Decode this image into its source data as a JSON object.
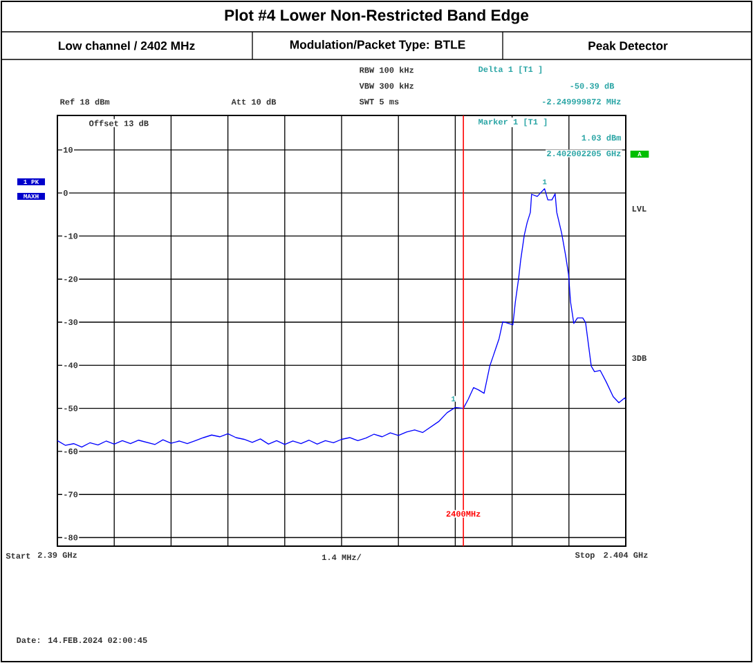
{
  "chart_data": {
    "type": "line",
    "title": "Plot #4 Lower Non-Restricted Band Edge",
    "xlabel": "1.4 MHz/",
    "x": [
      2.39,
      2.3902,
      2.3904,
      2.3906,
      2.3908,
      2.391,
      2.3912,
      2.3914,
      2.3916,
      2.3918,
      2.392,
      2.3922,
      2.3924,
      2.3926,
      2.3928,
      2.393,
      2.3932,
      2.3934,
      2.3936,
      2.3938,
      2.394,
      2.3942,
      2.3944,
      2.3946,
      2.3948,
      2.395,
      2.3952,
      2.3954,
      2.3956,
      2.3958,
      2.396,
      2.3962,
      2.3964,
      2.3966,
      2.3968,
      2.397,
      2.3972,
      2.3974,
      2.3976,
      2.3978,
      2.398,
      2.3982,
      2.3984,
      2.3986,
      2.3988,
      2.399,
      2.3992,
      2.3994,
      2.3996,
      2.3998,
      2.4,
      2.40012,
      2.40025,
      2.40037,
      2.40051,
      2.40065,
      2.40073,
      2.40088,
      2.40097,
      2.40105,
      2.40122,
      2.40128,
      2.40136,
      2.40141,
      2.4015,
      2.40157,
      2.40165,
      2.40168,
      2.40182,
      2.402,
      2.40208,
      2.40218,
      2.40226,
      2.4023,
      2.40242,
      2.40252,
      2.40259,
      2.40264,
      2.40272,
      2.40281,
      2.40294,
      2.40301,
      2.40315,
      2.40323,
      2.40337,
      2.40352,
      2.40369,
      2.40383,
      2.40397,
      2.404
    ],
    "values": [
      -57.5,
      -58.6,
      -58.2,
      -59.0,
      -58.0,
      -58.5,
      -57.6,
      -58.3,
      -57.5,
      -58.2,
      -57.4,
      -57.9,
      -58.4,
      -57.3,
      -58.1,
      -57.6,
      -58.2,
      -57.5,
      -56.8,
      -56.2,
      -56.6,
      -55.9,
      -56.8,
      -57.2,
      -57.9,
      -57.1,
      -58.3,
      -57.5,
      -58.4,
      -57.6,
      -58.2,
      -57.4,
      -58.3,
      -57.5,
      -58.0,
      -57.2,
      -56.8,
      -57.5,
      -56.9,
      -56.0,
      -56.6,
      -55.7,
      -56.3,
      -55.5,
      -55.0,
      -55.6,
      -54.3,
      -53.0,
      -51.0,
      -49.8,
      -50.0,
      -47.9,
      -45.2,
      -45.7,
      -46.5,
      -40.2,
      -38.0,
      -33.8,
      -29.9,
      -30.1,
      -30.6,
      -25.3,
      -19.9,
      -15.7,
      -9.8,
      -6.9,
      -4.5,
      -0.3,
      -0.8,
      1.0,
      -1.6,
      -1.6,
      -0.2,
      -4.5,
      -9.3,
      -14.6,
      -18.9,
      -25.3,
      -30.3,
      -29.0,
      -29.0,
      -30.1,
      -40.2,
      -41.5,
      -41.2,
      -43.9,
      -47.3,
      -48.7,
      -47.6,
      -48.0
    ],
    "color": "#0000ff",
    "marker": "none",
    "line_style": "solid",
    "grid": true,
    "xlim": [
      2.39,
      2.404
    ],
    "ylim": [
      -82,
      18
    ],
    "xticks": [
      {
        "value": 2.39,
        "label": "2.39 GHz"
      },
      {
        "value": 2.3914,
        "label": null
      },
      {
        "value": 2.3928,
        "label": null
      },
      {
        "value": 2.3942,
        "label": null
      },
      {
        "value": 2.3956,
        "label": null
      },
      {
        "value": 2.397,
        "label": null
      },
      {
        "value": 2.3984,
        "label": null
      },
      {
        "value": 2.3998,
        "label": null
      },
      {
        "value": 2.4012,
        "label": null
      },
      {
        "value": 2.4026,
        "label": null
      },
      {
        "value": 2.404,
        "label": "2.404 GHz"
      }
    ],
    "yticks": [
      10,
      0,
      -10,
      -20,
      -30,
      -40,
      -50,
      -60,
      -70,
      -80
    ],
    "ref_lines": [
      {
        "axis": "x",
        "value": 2.4,
        "label": "2400MHz",
        "color": "#ff0000"
      }
    ],
    "annotations": [
      "Low channel / 2402 MHz",
      "Modulation/Packet Type: BTLE",
      "Peak Detector",
      "RBW 100 kHz",
      "VBW 300 kHz",
      "SWT 5 ms",
      "Ref 18 dBm",
      "Att 10 dB",
      "Offset 13 dB",
      "Delta 1 [T1 ]",
      "-50.39 dB",
      "-2.249999872 MHz",
      "Marker 1 [T1 ]",
      "1.03 dBm",
      "2.402002205 GHz",
      "1 PK",
      "MAXH",
      "A",
      "LVL",
      "3DB",
      "Start",
      "Date: 14.FEB.2024 02:00:45",
      "Stop",
      {
        "text": "1",
        "x": 2.402002205,
        "y": 1.03
      },
      {
        "text": "1",
        "x": 2.399752,
        "y": -49.36
      }
    ]
  }
}
